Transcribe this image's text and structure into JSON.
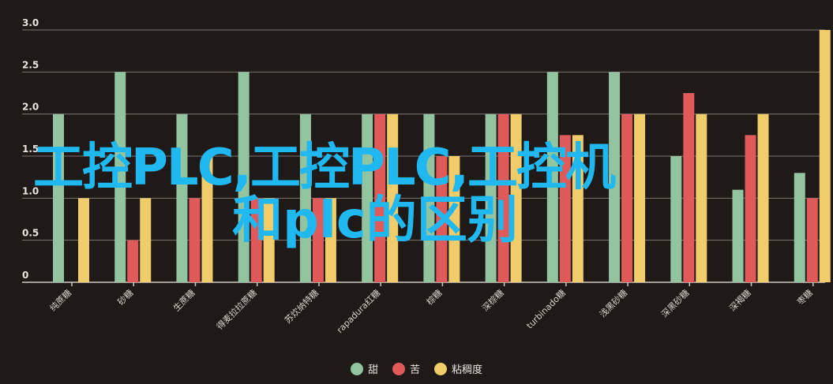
{
  "chart_data": {
    "type": "bar",
    "categories": [
      "纯蔗糖",
      "砂糖",
      "生蔗糖",
      "得麦拉拉蔗糖",
      "苏炊纳特糖",
      "rapadura红糖",
      "棕糖",
      "深棕糖",
      "turbinado糖",
      "浅黑砂糖",
      "深黑砂糖",
      "深褐糖",
      "枣糖"
    ],
    "series": [
      {
        "name": "甜",
        "color": "#93c4a0",
        "values": [
          2.0,
          2.5,
          2.0,
          2.5,
          2.0,
          2.0,
          2.0,
          2.0,
          2.5,
          2.5,
          1.5,
          1.1,
          1.3
        ]
      },
      {
        "name": "苦",
        "color": "#e05a5a",
        "values": [
          0,
          0.5,
          1.0,
          1.0,
          1.0,
          2.0,
          1.5,
          2.0,
          1.75,
          2.0,
          2.25,
          1.75,
          1.0
        ]
      },
      {
        "name": "粘稠度",
        "color": "#f0cc6a",
        "values": [
          1.0,
          1.0,
          1.5,
          1.0,
          1.0,
          2.0,
          1.5,
          2.0,
          1.75,
          2.0,
          2.0,
          2.0,
          3.0
        ]
      }
    ],
    "yticks": [
      "0",
      "0.5",
      "1.0",
      "1.5",
      "2.0",
      "2.5",
      "3.0"
    ],
    "ylim": [
      0,
      3
    ],
    "grid": true,
    "legend": "bottom-center"
  },
  "overlay": {
    "line1": "工控PLC,工控PLC,工控机",
    "line2": "和plc的区别"
  }
}
